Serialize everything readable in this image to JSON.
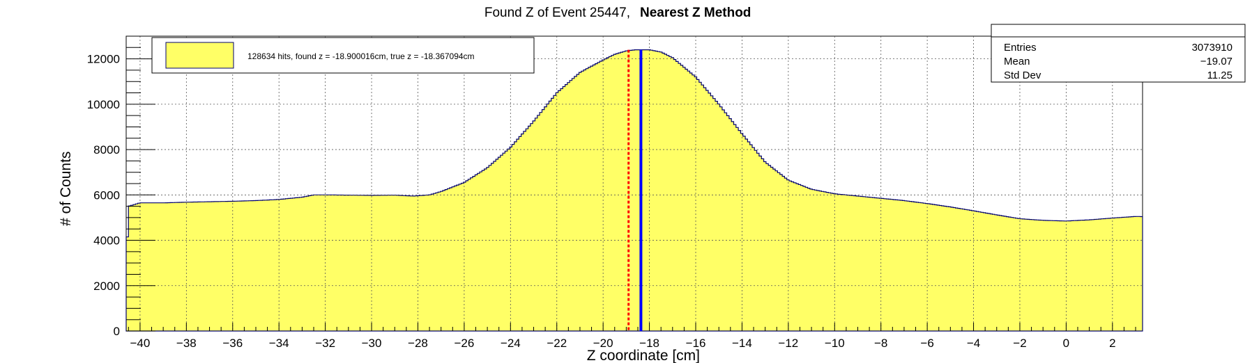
{
  "chart_data": {
    "type": "histogram",
    "title": "Found Z of Event 25447,",
    "title_bold": "Nearest Z Method",
    "xlabel": "Z coordinate [cm]",
    "ylabel": "# of Counts",
    "xlim": [
      -40.6,
      3.3
    ],
    "ylim": [
      0,
      13000
    ],
    "x_tick_labels": [
      "-40",
      "-38",
      "-36",
      "-34",
      "-32",
      "-30",
      "-28",
      "-26",
      "-24",
      "-22",
      "-20",
      "-18",
      "-16",
      "-14",
      "-12",
      "-10",
      "-8",
      "-6",
      "-4",
      "-2",
      "0",
      "2"
    ],
    "x_tick_values": [
      -40,
      -38,
      -36,
      -34,
      -32,
      -30,
      -28,
      -26,
      -24,
      -22,
      -20,
      -18,
      -16,
      -14,
      -12,
      -10,
      -8,
      -6,
      -4,
      -2,
      0,
      2
    ],
    "y_tick_labels": [
      "0",
      "2000",
      "4000",
      "6000",
      "8000",
      "10000",
      "12000"
    ],
    "y_tick_values": [
      0,
      2000,
      4000,
      6000,
      8000,
      10000,
      12000
    ],
    "grid": true,
    "fill_color": "#ffff66",
    "line_color": "#00006e",
    "curve": {
      "x": [
        -40.6,
        -40.5,
        -40.0,
        -39.0,
        -38.0,
        -37.0,
        -36.0,
        -35.0,
        -34.0,
        -33.0,
        -32.5,
        -32.0,
        -31.0,
        -30.0,
        -29.0,
        -28.2,
        -27.5,
        -27.0,
        -26.0,
        -25.0,
        -24.0,
        -23.0,
        -22.0,
        -21.0,
        -20.0,
        -19.5,
        -19.0,
        -18.6,
        -18.3,
        -18.0,
        -17.5,
        -17.0,
        -16.0,
        -15.0,
        -14.0,
        -13.0,
        -12.0,
        -11.0,
        -10.0,
        -9.0,
        -8.0,
        -7.0,
        -6.0,
        -5.0,
        -4.0,
        -3.0,
        -2.0,
        -1.0,
        0.0,
        1.0,
        2.0,
        3.0,
        3.25,
        3.3
      ],
      "y": [
        2800,
        5500,
        5650,
        5650,
        5680,
        5700,
        5720,
        5750,
        5800,
        5900,
        6000,
        6000,
        5990,
        5980,
        5990,
        5950,
        6000,
        6150,
        6550,
        7200,
        8100,
        9250,
        10500,
        11400,
        11950,
        12200,
        12350,
        12400,
        12400,
        12400,
        12300,
        12050,
        11200,
        10000,
        8700,
        7450,
        6650,
        6250,
        6050,
        5950,
        5850,
        5750,
        5620,
        5470,
        5300,
        5120,
        4950,
        4880,
        4850,
        4900,
        4980,
        5050,
        5050,
        2500
      ]
    },
    "found_z": -18.900016,
    "true_z": -18.367094,
    "found_z_line_color": "#ff0000",
    "true_z_line_color": "#0000ff",
    "legend": {
      "placement": "top-left",
      "entry": "128634 hits, found z = -18.900016cm, true z = -18.367094cm"
    },
    "stats": {
      "placement": "top-right",
      "rows": [
        {
          "label": "Entries",
          "value": "3073910"
        },
        {
          "label": "Mean",
          "value": "−19.07"
        },
        {
          "label": "Std Dev",
          "value": "11.25"
        }
      ]
    }
  }
}
